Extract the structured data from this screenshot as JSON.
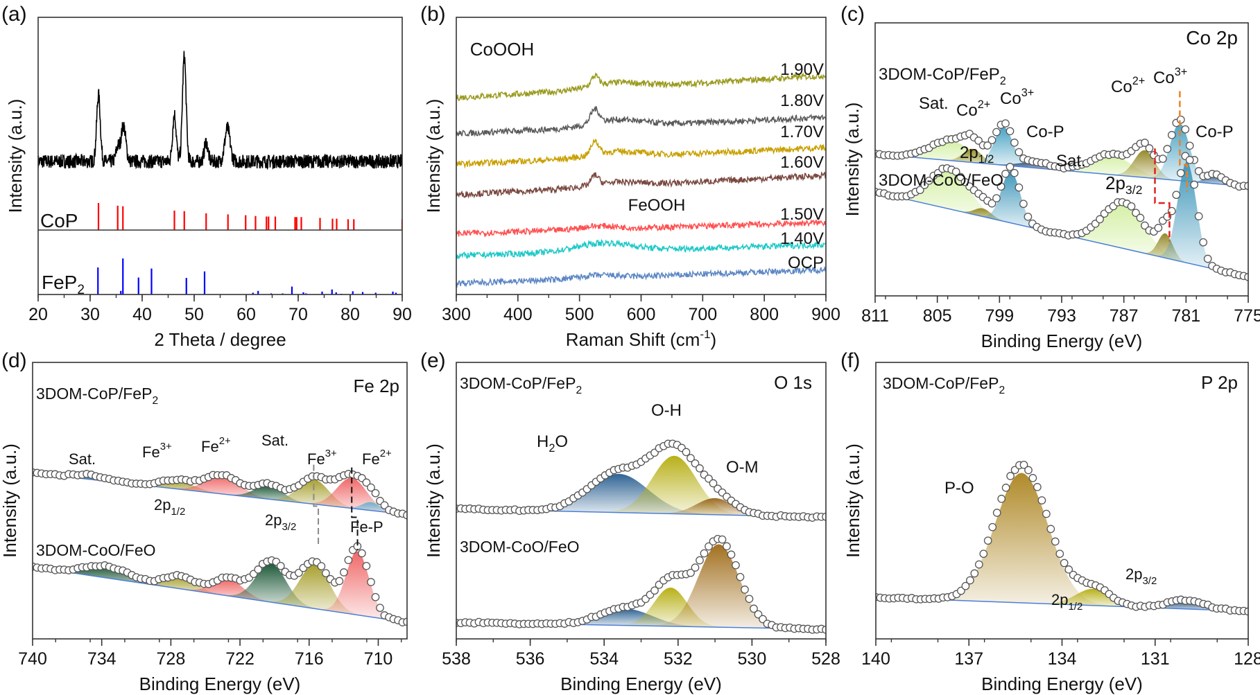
{
  "chart_data": [
    {
      "panel": "(a)",
      "type": "line",
      "xlabel": "2 Theta / degree",
      "ylabel": "Intensity (a.u.)",
      "xlim": [
        20,
        90
      ],
      "xticks": [
        20,
        30,
        40,
        50,
        60,
        70,
        80,
        90
      ],
      "pattern": {
        "color": "#000000",
        "baseline": 0.48,
        "peaks": [
          {
            "center": 31.6,
            "amp": 0.24,
            "sigma": 0.35
          },
          {
            "center": 35.3,
            "amp": 0.05,
            "sigma": 0.35
          },
          {
            "center": 36.4,
            "amp": 0.13,
            "sigma": 0.45
          },
          {
            "center": 46.2,
            "amp": 0.17,
            "sigma": 0.35
          },
          {
            "center": 48.1,
            "amp": 0.38,
            "sigma": 0.35
          },
          {
            "center": 52.3,
            "amp": 0.07,
            "sigma": 0.35
          },
          {
            "center": 56.4,
            "amp": 0.12,
            "sigma": 0.5
          }
        ]
      },
      "references": [
        {
          "name": "CoP",
          "color": "#ff0000",
          "positions": [
            31.6,
            35.3,
            36.3,
            46.2,
            48.1,
            52.3,
            56.5,
            59.9,
            61.8,
            63.9,
            64.3,
            65.6,
            69.4,
            69.7,
            70.6,
            74.2,
            76.6,
            77.4,
            79.6,
            80.7,
            90.0
          ],
          "intensities": [
            100,
            90,
            88,
            72,
            70,
            62,
            58,
            55,
            52,
            50,
            50,
            50,
            48,
            48,
            48,
            45,
            42,
            42,
            40,
            40,
            40
          ]
        },
        {
          "name": "FeP2",
          "color": "#0000ff",
          "positions": [
            31.5,
            35.9,
            36.3,
            39.3,
            41.8,
            48.5,
            52.0,
            61.3,
            62.3,
            64.8,
            67.0,
            68.8,
            71.0,
            71.5,
            74.6,
            76.5,
            77.3,
            78.3,
            80.5,
            82.4,
            84.9,
            88.2,
            88.8
          ],
          "intensities": [
            75,
            10,
            100,
            47,
            72,
            46,
            64,
            5,
            10,
            3,
            3,
            22,
            6,
            3,
            8,
            14,
            6,
            2,
            9,
            7,
            5,
            8,
            5
          ]
        }
      ],
      "annotations": [
        {
          "text": "CoP"
        },
        {
          "text": "FeP",
          "sub": "2"
        }
      ]
    },
    {
      "panel": "(b)",
      "type": "line",
      "xlabel": "Raman Shift (cm",
      "xlabel_sup": "-1",
      "xlabel_end": ")",
      "ylabel": "Intensity (a.u.)",
      "xlim": [
        300,
        900
      ],
      "xticks": [
        300,
        400,
        500,
        600,
        700,
        800,
        900
      ],
      "series": [
        {
          "name": "1.90V",
          "color": "#9a9a1e",
          "start": 0.71,
          "end": 0.79,
          "peaks": [
            {
              "center": 525,
              "amp": 0.035,
              "sigma": 6
            },
            {
              "center": 560,
              "amp": 0.02,
              "sigma": 40
            }
          ]
        },
        {
          "name": "1.80V",
          "color": "#5a5a5a",
          "start": 0.58,
          "end": 0.64,
          "peaks": [
            {
              "center": 525,
              "amp": 0.05,
              "sigma": 7
            },
            {
              "center": 560,
              "amp": 0.025,
              "sigma": 40
            }
          ]
        },
        {
          "name": "1.70V",
          "color": "#c9a000",
          "start": 0.47,
          "end": 0.53,
          "peaks": [
            {
              "center": 525,
              "amp": 0.05,
              "sigma": 6
            },
            {
              "center": 560,
              "amp": 0.02,
              "sigma": 40
            }
          ]
        },
        {
          "name": "1.60V",
          "color": "#7a4840",
          "start": 0.36,
          "end": 0.43,
          "peaks": [
            {
              "center": 525,
              "amp": 0.035,
              "sigma": 6
            },
            {
              "center": 560,
              "amp": 0.015,
              "sigma": 40
            }
          ]
        },
        {
          "name": "1.50V",
          "color": "#ff5050",
          "start": 0.22,
          "end": 0.26,
          "peaks": [
            {
              "center": 530,
              "amp": 0.012,
              "sigma": 30
            }
          ]
        },
        {
          "name": "1.40V",
          "color": "#1fc8c8",
          "start": 0.14,
          "end": 0.18,
          "peaks": [
            {
              "center": 540,
              "amp": 0.03,
              "sigma": 45
            }
          ]
        },
        {
          "name": "OCP",
          "color": "#5b86c4",
          "start": 0.04,
          "end": 0.09,
          "peaks": [
            {
              "center": 530,
              "amp": 0.01,
              "sigma": 30
            }
          ]
        }
      ],
      "annotations": [
        {
          "text": "CoOOH"
        },
        {
          "text": "FeOOH"
        }
      ]
    },
    {
      "panel": "(c)",
      "type": "line",
      "xlabel": "Binding Energy (eV)",
      "ylabel": "Intensity (a.u.)",
      "xlim": [
        811,
        775
      ],
      "xticks": [
        811,
        805,
        799,
        793,
        787,
        781,
        775
      ],
      "spectra": [
        {
          "baseline": [
            0.52,
            0.4
          ],
          "peaks": [
            {
              "center": 803.6,
              "amp": 0.07,
              "sigma": 2.0,
              "color": "#d6f0a8"
            },
            {
              "center": 801.6,
              "amp": 0.05,
              "sigma": 0.9,
              "color": "#968a2a"
            },
            {
              "center": 798.6,
              "amp": 0.14,
              "sigma": 0.9,
              "color": "#4aa3c4"
            },
            {
              "center": 795.5,
              "amp": 0.02,
              "sigma": 1.6,
              "color": "#3c5a84"
            },
            {
              "center": 788.2,
              "amp": 0.07,
              "sigma": 2.0,
              "color": "#d6f0a8"
            },
            {
              "center": 785.0,
              "amp": 0.1,
              "sigma": 1.0,
              "color": "#968a2a"
            },
            {
              "center": 781.6,
              "amp": 0.21,
              "sigma": 0.95,
              "color": "#4aa3c4"
            },
            {
              "center": 778.2,
              "amp": 0.035,
              "sigma": 0.8,
              "color": "#245a8c"
            }
          ]
        },
        {
          "baseline": [
            0.38,
            0.07
          ],
          "peaks": [
            {
              "center": 803.8,
              "amp": 0.14,
              "sigma": 1.9,
              "color": "#d6f0a8"
            },
            {
              "center": 800.6,
              "amp": 0.03,
              "sigma": 0.8,
              "color": "#968a2a"
            },
            {
              "center": 797.9,
              "amp": 0.19,
              "sigma": 0.9,
              "color": "#3f97bb"
            },
            {
              "center": 787.0,
              "amp": 0.16,
              "sigma": 2.0,
              "color": "#d6f0a8"
            },
            {
              "center": 783.0,
              "amp": 0.09,
              "sigma": 0.7,
              "color": "#968a2a"
            },
            {
              "center": 780.9,
              "amp": 0.37,
              "sigma": 0.9,
              "color": "#3f97bb"
            }
          ]
        }
      ],
      "annotations": [
        {
          "text": "Co 2p"
        },
        {
          "text": "3DOM-CoP/FeP",
          "sub": "2"
        },
        {
          "text": "Sat."
        },
        {
          "text": "Co",
          "sup": "2+"
        },
        {
          "text": "Co",
          "sup": "3+"
        },
        {
          "text": "Co-P"
        },
        {
          "text": "2p",
          "sub": "1/2"
        },
        {
          "text": "Sat."
        },
        {
          "text": "Co",
          "sup": "2+"
        },
        {
          "text": "Co",
          "sup": "3+"
        },
        {
          "text": "Co-P"
        },
        {
          "text": "3DOM-CoO/FeO"
        },
        {
          "text": "2p",
          "sub": "3/2"
        }
      ]
    },
    {
      "panel": "(d)",
      "type": "line",
      "xlabel": "Binding Energy (eV)",
      "ylabel": "Intensity (a.u.)",
      "xlim": [
        740,
        707.5
      ],
      "xticks": [
        740,
        734,
        728,
        722,
        716,
        710
      ],
      "spectra": [
        {
          "baseline": [
            0.6,
            0.45
          ],
          "peaks": [
            {
              "center": 735.0,
              "amp": 0.015,
              "sigma": 1.5,
              "color": "#1f5a3a"
            },
            {
              "center": 727.5,
              "amp": 0.03,
              "sigma": 1.5,
              "color": "#a8a030"
            },
            {
              "center": 723.5,
              "amp": 0.065,
              "sigma": 1.5,
              "color": "#f06868"
            },
            {
              "center": 719.5,
              "amp": 0.05,
              "sigma": 1.2,
              "color": "#1f5a3a"
            },
            {
              "center": 715.6,
              "amp": 0.09,
              "sigma": 1.3,
              "color": "#a8a030"
            },
            {
              "center": 712.3,
              "amp": 0.11,
              "sigma": 1.3,
              "color": "#f06868"
            },
            {
              "center": 710.6,
              "amp": 0.03,
              "sigma": 0.8,
              "color": "#6ab4d0"
            }
          ]
        },
        {
          "baseline": [
            0.26,
            0.06
          ],
          "peaks": [
            {
              "center": 733.5,
              "amp": 0.04,
              "sigma": 2.0,
              "color": "#1f5a3a"
            },
            {
              "center": 727.2,
              "amp": 0.045,
              "sigma": 1.3,
              "color": "#a8a030"
            },
            {
              "center": 723.0,
              "amp": 0.06,
              "sigma": 1.3,
              "color": "#f06868"
            },
            {
              "center": 719.3,
              "amp": 0.14,
              "sigma": 1.3,
              "color": "#1f5a3a"
            },
            {
              "center": 715.5,
              "amp": 0.16,
              "sigma": 1.3,
              "color": "#a8a030"
            },
            {
              "center": 711.8,
              "amp": 0.23,
              "sigma": 1.0,
              "color": "#f06868"
            }
          ]
        }
      ],
      "annotations": [
        {
          "text": "3DOM-CoP/FeP",
          "sub": "2"
        },
        {
          "text": "Fe 2p"
        },
        {
          "text": "Sat."
        },
        {
          "text": "Fe",
          "sup": "3+"
        },
        {
          "text": "Fe",
          "sup": "2+"
        },
        {
          "text": "Sat."
        },
        {
          "text": "Fe",
          "sup": "3+"
        },
        {
          "text": "Fe",
          "sup": "2+"
        },
        {
          "text": "2p",
          "sub": "1/2"
        },
        {
          "text": "2p",
          "sub": "3/2"
        },
        {
          "text": "Fe-P"
        },
        {
          "text": "3DOM-CoO/FeO"
        }
      ]
    },
    {
      "panel": "(e)",
      "type": "line",
      "xlabel": "Binding Energy (eV)",
      "ylabel": "Intensity (a.u.)",
      "xlim": [
        538,
        528
      ],
      "xticks": [
        538,
        536,
        534,
        532,
        530,
        528
      ],
      "spectra": [
        {
          "baseline": [
            0.47,
            0.44
          ],
          "peaks": [
            {
              "center": 533.6,
              "amp": 0.14,
              "sigma": 0.8,
              "color": "#2f6494"
            },
            {
              "center": 532.1,
              "amp": 0.21,
              "sigma": 0.6,
              "color": "#b8b018"
            },
            {
              "center": 531.0,
              "amp": 0.06,
              "sigma": 0.5,
              "color": "#9a6a20"
            }
          ]
        },
        {
          "baseline": [
            0.06,
            0.035
          ],
          "peaks": [
            {
              "center": 533.4,
              "amp": 0.06,
              "sigma": 0.7,
              "color": "#2f6494"
            },
            {
              "center": 532.2,
              "amp": 0.14,
              "sigma": 0.45,
              "color": "#b8b018"
            },
            {
              "center": 530.9,
              "amp": 0.3,
              "sigma": 0.55,
              "color": "#a27020"
            }
          ]
        }
      ],
      "annotations": [
        {
          "text": "3DOM-CoP/FeP",
          "sub": "2"
        },
        {
          "text": "O 1s"
        },
        {
          "text": "O-H"
        },
        {
          "text": "H",
          "sub": "2",
          "tail": "O"
        },
        {
          "text": "O-M"
        },
        {
          "text": "3DOM-CoO/FeO"
        }
      ]
    },
    {
      "panel": "(f)",
      "type": "line",
      "xlabel": "Binding Energy (eV)",
      "ylabel": "Intensity (a.u.)",
      "xlim": [
        140,
        128
      ],
      "xticks": [
        140,
        137,
        134,
        131,
        128
      ],
      "spectra": [
        {
          "baseline": [
            0.15,
            0.1
          ],
          "peaks": [
            {
              "center": 135.3,
              "amp": 0.47,
              "sigma": 0.85,
              "color": "#b08a2a"
            },
            {
              "center": 133.0,
              "amp": 0.06,
              "sigma": 0.55,
              "color": "#b8b018"
            },
            {
              "center": 130.0,
              "amp": 0.03,
              "sigma": 0.6,
              "color": "#1f4f84"
            }
          ]
        }
      ],
      "annotations": [
        {
          "text": "3DOM-CoP/FeP",
          "sub": "2"
        },
        {
          "text": "P 2p"
        },
        {
          "text": "P-O"
        },
        {
          "text": "2p",
          "sub": "3/2"
        },
        {
          "text": "2p",
          "sub": "1/2"
        }
      ]
    }
  ]
}
